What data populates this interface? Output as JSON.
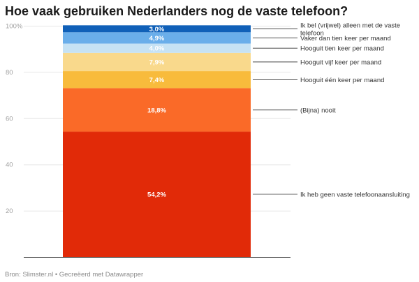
{
  "title": "Hoe vaak gebruiken Nederlanders nog de vaste telefoon?",
  "footer": {
    "source_label": "Bron:",
    "source": "Slimster.nl",
    "separator": "•",
    "credit": "Gecreëerd met Datawrapper"
  },
  "chart_data": {
    "type": "bar",
    "stacked": true,
    "orientation": "vertical",
    "title": "Hoe vaak gebruiken Nederlanders nog de vaste telefoon?",
    "ylim": [
      0,
      100
    ],
    "y_ticks": [
      "20",
      "40",
      "60",
      "80",
      "100%"
    ],
    "y_tick_values": [
      20,
      40,
      60,
      80,
      100
    ],
    "grid": true,
    "legend_placement": "right (direct labels)",
    "series": [
      {
        "name": "Ik heb geen vaste telefoonaansluiting",
        "label_lines": [
          "Ik heb geen vaste telefoonaansluiting"
        ],
        "value": 54.2,
        "value_label": "54,2%",
        "color": "#e12a08"
      },
      {
        "name": "(Bijna) nooit",
        "label_lines": [
          "(Bijna) nooit"
        ],
        "value": 18.8,
        "value_label": "18,8%",
        "color": "#fa6a28"
      },
      {
        "name": "Hooguit één keer per maand",
        "label_lines": [
          "Hooguit één keer per maand"
        ],
        "value": 7.4,
        "value_label": "7,4%",
        "color": "#f8bb3c"
      },
      {
        "name": "Hooguit vijf keer per maand",
        "label_lines": [
          "Hooguit vijf keer per maand"
        ],
        "value": 7.9,
        "value_label": "7,9%",
        "color": "#f9d98c"
      },
      {
        "name": "Hooguit tien keer per maand",
        "label_lines": [
          "Hooguit tien keer per maand"
        ],
        "value": 4.0,
        "value_label": "4,0%",
        "color": "#c6e2f4"
      },
      {
        "name": "Vaker dan tien keer per maand",
        "label_lines": [
          "Vaker dan tien keer per maand"
        ],
        "value": 4.9,
        "value_label": "4,9%",
        "color": "#6aaeea"
      },
      {
        "name": "Ik bel (vrijwel) alleen met de vaste telefoon",
        "label_lines": [
          "Ik bel (vrijwel) alleen met de vaste",
          "telefoon"
        ],
        "value": 3.0,
        "value_label": "3,0%",
        "color": "#1060b8"
      }
    ]
  }
}
